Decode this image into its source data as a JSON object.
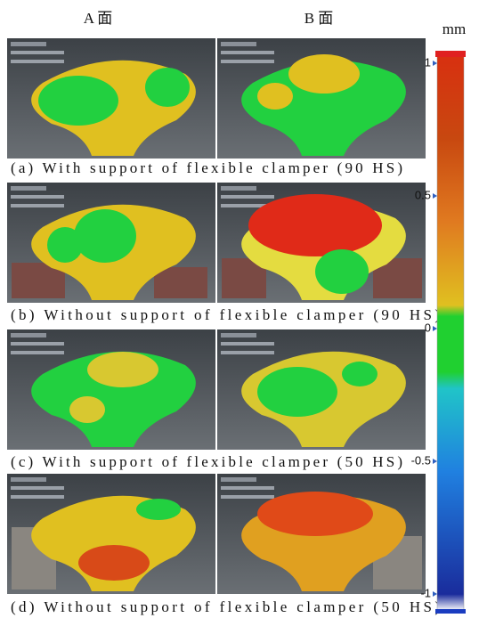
{
  "columns": [
    "A 面",
    "B 面"
  ],
  "colorbar": {
    "unit": "mm",
    "ticks": [
      1,
      0.5,
      0,
      -0.5,
      -1
    ]
  },
  "panels": [
    {
      "caption": "(a) With support of flexible clamper (90 HS)"
    },
    {
      "caption": "(b) Without support of flexible clamper (90 HS)"
    },
    {
      "caption": "(c) With support of flexible clamper (50 HS)"
    },
    {
      "caption": "(d) Without support of flexible clamper (50 HS)"
    }
  ]
}
